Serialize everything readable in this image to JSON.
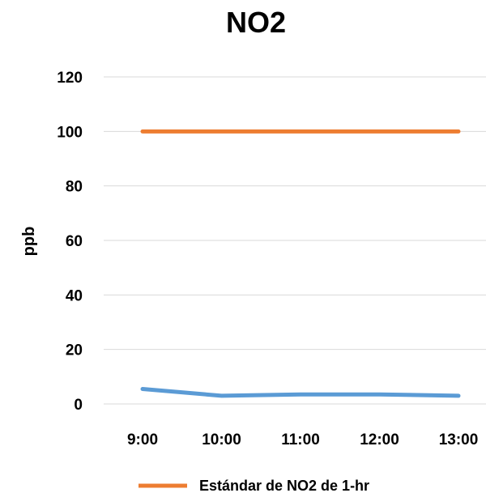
{
  "chart_data": {
    "type": "line",
    "title": "NO2",
    "xlabel": "",
    "ylabel": "ppb",
    "categories": [
      "9:00",
      "10:00",
      "11:00",
      "12:00",
      "13:00"
    ],
    "ylim": [
      0,
      120
    ],
    "yticks": [
      0,
      20,
      40,
      60,
      80,
      100,
      120
    ],
    "grid": true,
    "legend_position": "bottom",
    "series": [
      {
        "name": "Estándar de NO2 de 1-hr",
        "color": "#ED7D31",
        "values": [
          100,
          100,
          100,
          100,
          100
        ]
      },
      {
        "color": "#5B9BD5",
        "values": [
          5.5,
          3,
          3.5,
          3.5,
          3
        ],
        "in_legend": false
      }
    ]
  }
}
